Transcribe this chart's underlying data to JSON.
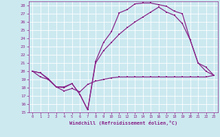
{
  "xlabel": "Windchill (Refroidissement éolien,°C)",
  "xlim": [
    -0.5,
    23.5
  ],
  "ylim": [
    15,
    28.5
  ],
  "xticks": [
    0,
    1,
    2,
    3,
    4,
    5,
    6,
    7,
    8,
    9,
    10,
    11,
    12,
    13,
    14,
    15,
    16,
    17,
    18,
    19,
    20,
    21,
    22,
    23
  ],
  "yticks": [
    15,
    16,
    17,
    18,
    19,
    20,
    21,
    22,
    23,
    24,
    25,
    26,
    27,
    28
  ],
  "bg_color": "#cce9f0",
  "line_color": "#882288",
  "grid_color": "#ffffff",
  "line1_x": [
    0,
    1,
    2,
    3,
    4,
    5,
    6,
    7,
    8,
    9,
    10,
    11,
    12,
    13,
    14,
    15,
    16,
    17,
    18,
    19,
    20,
    21,
    22,
    23
  ],
  "line1_y": [
    20.0,
    19.8,
    19.0,
    18.1,
    18.1,
    18.5,
    17.2,
    15.3,
    21.2,
    23.5,
    24.8,
    27.1,
    27.5,
    28.2,
    28.3,
    28.3,
    28.1,
    27.9,
    27.3,
    27.0,
    23.8,
    21.0,
    20.5,
    19.5
  ],
  "line2_x": [
    0,
    1,
    2,
    3,
    4,
    5,
    6,
    7,
    8,
    9,
    10,
    11,
    12,
    13,
    14,
    15,
    16,
    17,
    18,
    19,
    20,
    21,
    22,
    23
  ],
  "line2_y": [
    20.0,
    19.8,
    19.1,
    18.1,
    18.0,
    18.5,
    17.2,
    15.3,
    21.0,
    22.5,
    23.5,
    24.5,
    25.3,
    26.0,
    26.6,
    27.2,
    27.8,
    27.2,
    26.8,
    25.8,
    23.8,
    21.0,
    20.0,
    19.5
  ],
  "line3_x": [
    0,
    1,
    2,
    3,
    4,
    5,
    6,
    7,
    8,
    9,
    10,
    11,
    12,
    13,
    14,
    15,
    16,
    17,
    18,
    19,
    20,
    21,
    22,
    23
  ],
  "line3_y": [
    20.0,
    19.3,
    19.0,
    18.1,
    17.6,
    17.9,
    17.5,
    18.4,
    18.8,
    19.0,
    19.2,
    19.3,
    19.3,
    19.3,
    19.3,
    19.3,
    19.3,
    19.3,
    19.3,
    19.3,
    19.3,
    19.3,
    19.3,
    19.5
  ]
}
